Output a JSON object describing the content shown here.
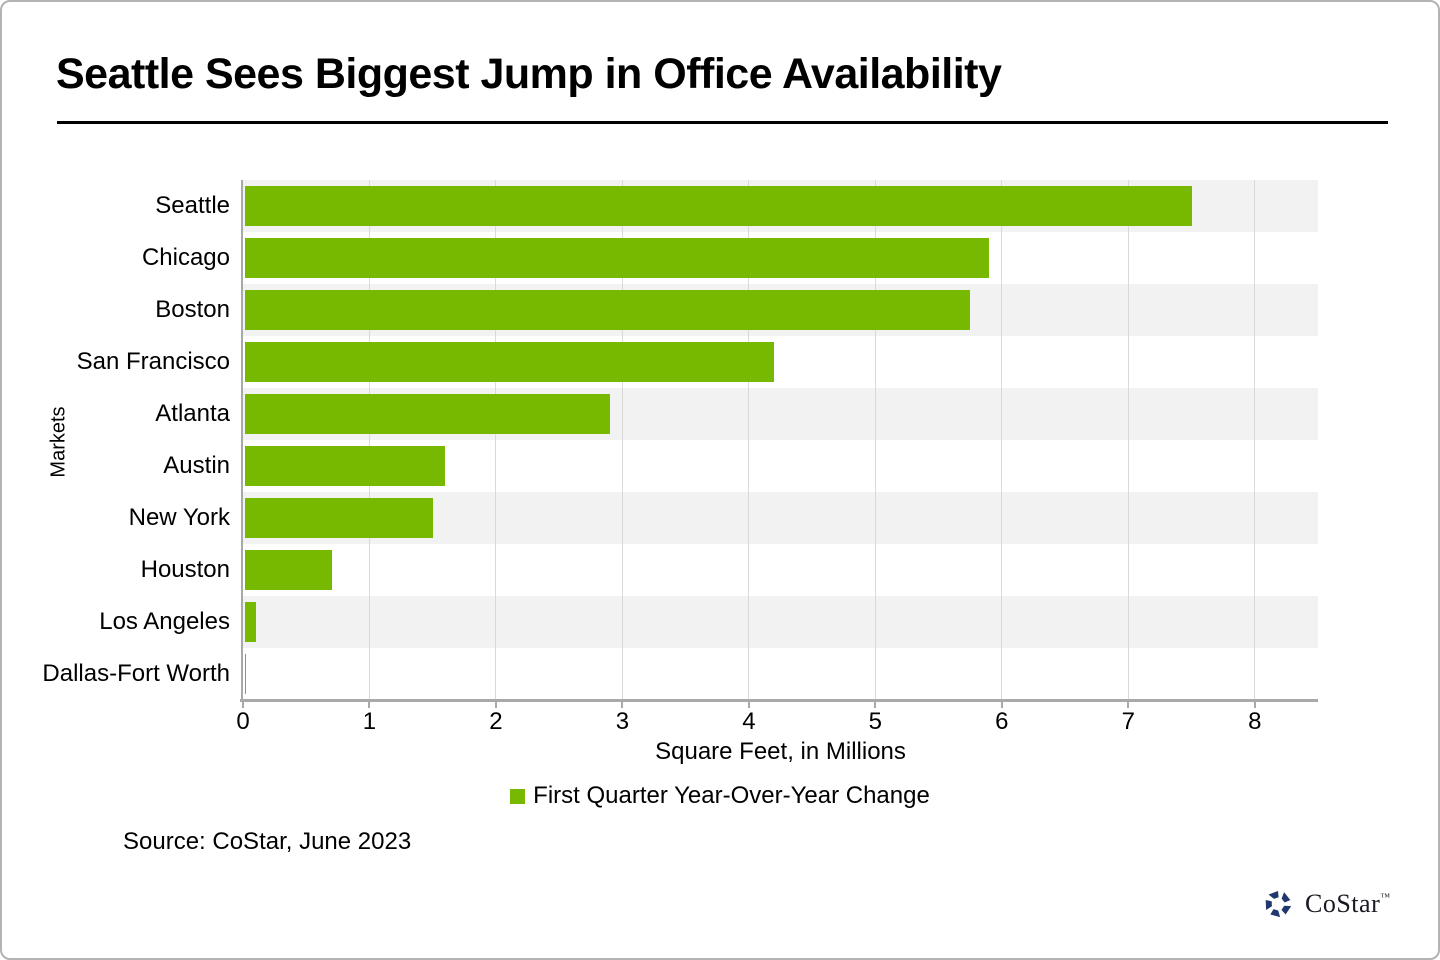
{
  "title": "Seattle Sees Biggest Jump in Office Availability",
  "chart_data": {
    "type": "bar",
    "orientation": "horizontal",
    "categories": [
      "Seattle",
      "Chicago",
      "Boston",
      "San Francisco",
      "Atlanta",
      "Austin",
      "New York",
      "Houston",
      "Los Angeles",
      "Dallas-Fort Worth"
    ],
    "values": [
      7.5,
      5.9,
      5.75,
      4.2,
      2.9,
      1.6,
      1.5,
      0.7,
      0.1,
      0.02
    ],
    "xlabel": "Square Feet, in Millions",
    "ylabel": "Markets",
    "xlim": [
      0,
      8.5
    ],
    "xticks": [
      0,
      1,
      2,
      3,
      4,
      5,
      6,
      7,
      8
    ],
    "legend": [
      "First Quarter Year-Over-Year Change"
    ],
    "legend_position": "bottom-center",
    "grid": true,
    "row_banding": "alternating, first row shaded",
    "colors": {
      "bar": "#76b900",
      "band": "#f2f2f2",
      "band_alt": "#ffffff",
      "gridline": "#d9d9d9",
      "axis": "#a9a9a9"
    }
  },
  "source": {
    "text": "Source: CoStar, June 2023"
  },
  "logo": {
    "text": "CoStar",
    "tm": "™",
    "icon_color": "#20386d"
  },
  "frame": {
    "border_color": "#b3b3b3"
  }
}
